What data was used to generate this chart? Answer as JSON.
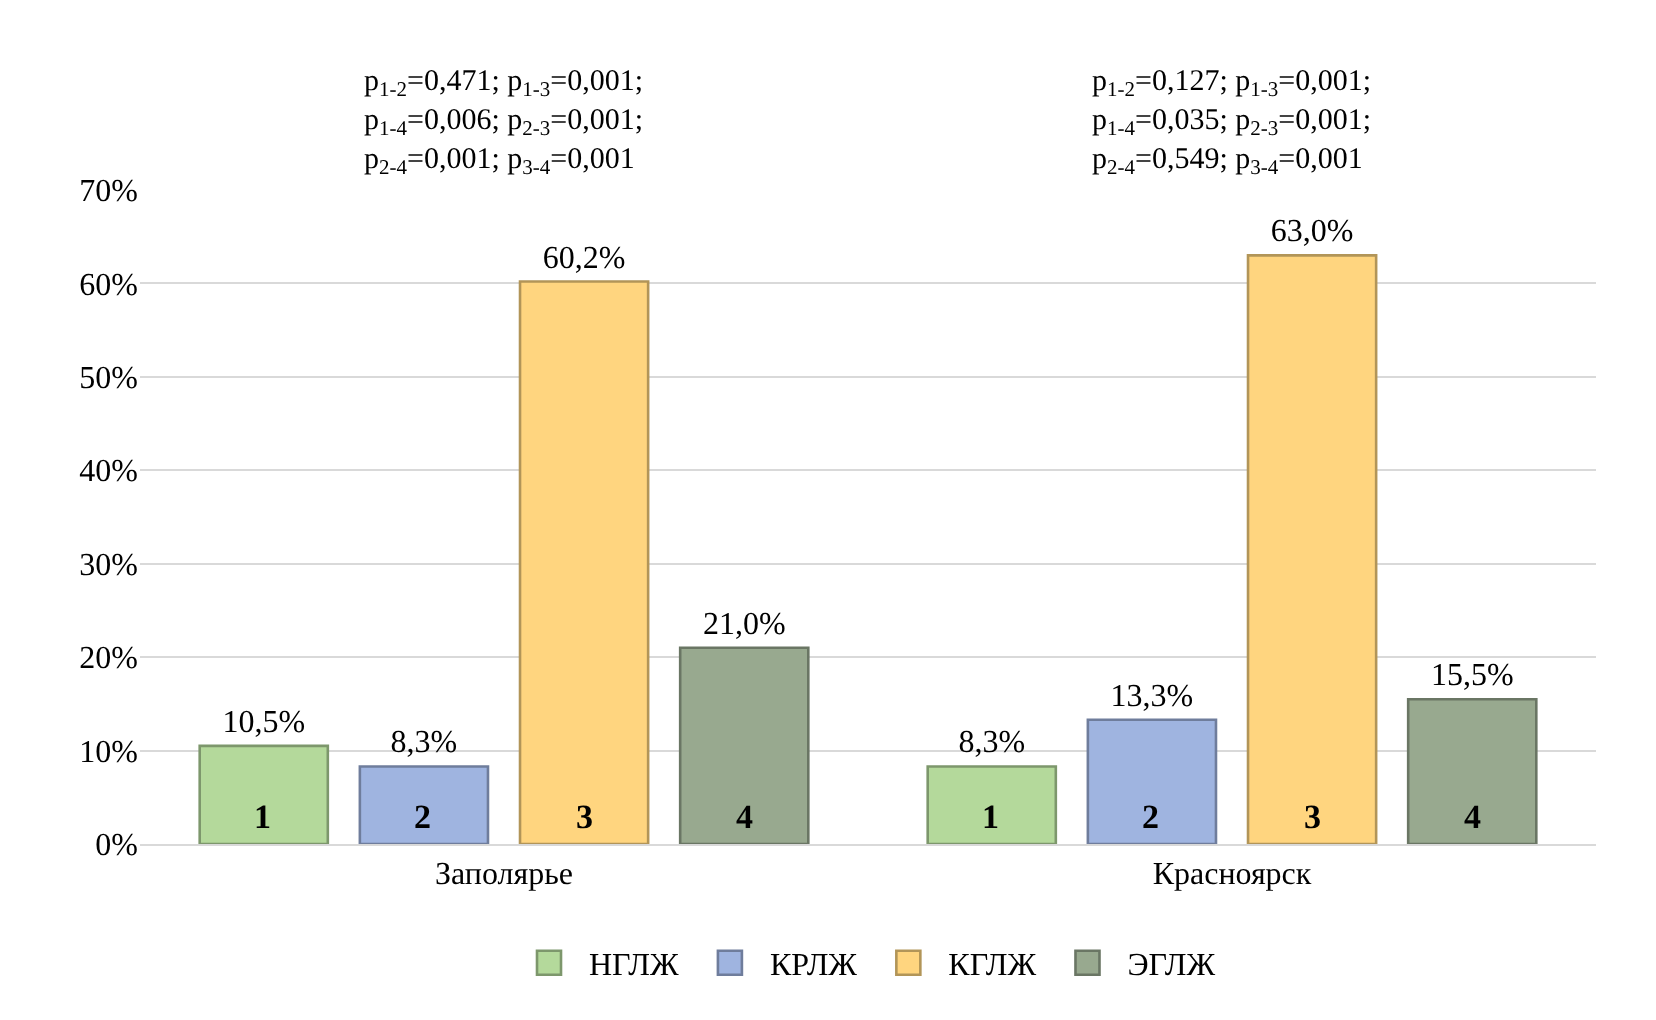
{
  "chart_data": {
    "type": "bar",
    "categories": [
      "Заполярье",
      "Красноярск"
    ],
    "series": [
      {
        "name": "НГЛЖ",
        "color": "#b4d99b",
        "values": [
          10.5,
          8.3
        ],
        "value_labels": [
          "10,5%",
          "8,3%"
        ]
      },
      {
        "name": "КРЛЖ",
        "color": "#9fb4e0",
        "values": [
          8.3,
          13.3
        ],
        "value_labels": [
          "8,3%",
          "13,3%"
        ]
      },
      {
        "name": "КГЛЖ",
        "color": "#ffd57f",
        "values": [
          60.2,
          63.0
        ],
        "value_labels": [
          "60,2%",
          "63,0%"
        ]
      },
      {
        "name": "ЭГЛЖ",
        "color": "#98a98f",
        "values": [
          21.0,
          15.5
        ],
        "value_labels": [
          "21,0%",
          "15,5%"
        ]
      }
    ],
    "ylim": [
      0,
      70
    ],
    "yticks": [
      {
        "value": 0,
        "label": "0%"
      },
      {
        "value": 10,
        "label": "10%"
      },
      {
        "value": 20,
        "label": "20%"
      },
      {
        "value": 30,
        "label": "30%"
      },
      {
        "value": 40,
        "label": "40%"
      },
      {
        "value": 50,
        "label": "50%"
      },
      {
        "value": 60,
        "label": "60%"
      },
      {
        "value": 70,
        "label": "70%"
      }
    ],
    "grid": "y",
    "legend": "bottom",
    "annotations": [
      "p$_{1-2}$=0,471; p$_{1-3}$=0,001;\np$_{1-4}$=0,006; p$_{2-3}$=0,001;\np$_{2-4}$=0,001; p$_{3-4}$=0,001",
      "p$_{1-2}$=0,127; p$_{1-3}$=0,001;\np$_{1-4}$=0,035; p$_{2-3}$=0,001;\np$_{2-4}$=0,549; p$_{3-4}$=0,001",
      "1",
      "2",
      "3",
      "4",
      "1",
      "2",
      "3",
      "4"
    ]
  }
}
